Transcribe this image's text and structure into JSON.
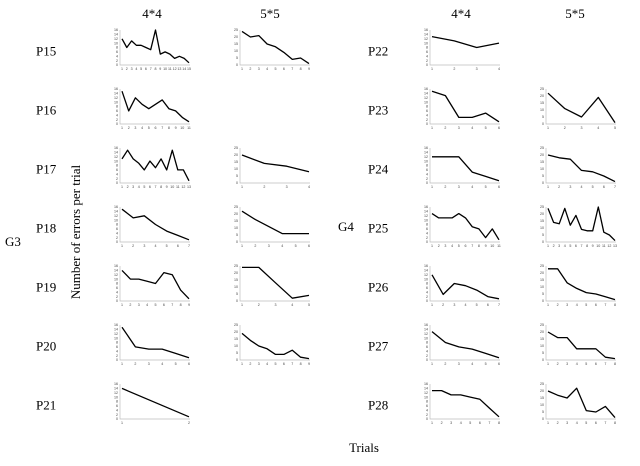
{
  "figure": {
    "ylabel": "Number of errors per trial",
    "xlabel": "Trials",
    "groups": [
      "G3",
      "G4"
    ],
    "columns": [
      "4*4",
      "5*5"
    ],
    "line_color": "#000000",
    "axis_color": "#bdbdbd"
  },
  "chart_data": [
    {
      "type": "line",
      "group": "G3",
      "participant": "P15",
      "board": "4*4",
      "x": [
        1,
        2,
        3,
        4,
        5,
        6,
        7,
        8,
        9,
        10,
        11,
        12,
        13,
        14,
        15
      ],
      "y": [
        12,
        8,
        11,
        9,
        9,
        8,
        7,
        16,
        5,
        6,
        5,
        3,
        4,
        3,
        1
      ],
      "ylim": [
        0,
        16
      ],
      "yticks": [
        0,
        2,
        4,
        6,
        8,
        10,
        12,
        14,
        16
      ],
      "xticks": [
        1,
        2,
        3,
        4,
        5,
        6,
        7,
        8,
        9,
        10,
        11,
        12,
        13,
        14,
        15
      ]
    },
    {
      "type": "line",
      "group": "G3",
      "participant": "P15",
      "board": "5*5",
      "x": [
        1,
        2,
        3,
        4,
        5,
        6,
        7,
        8,
        9
      ],
      "y": [
        24,
        20,
        21,
        15,
        13,
        9,
        4,
        5,
        1
      ],
      "ylim": [
        0,
        25
      ],
      "yticks": [
        0,
        5,
        10,
        15,
        20,
        25
      ],
      "xticks": [
        1,
        2,
        3,
        4,
        5,
        6,
        7,
        8,
        9
      ]
    },
    {
      "type": "line",
      "group": "G3",
      "participant": "P16",
      "board": "4*4",
      "x": [
        1,
        2,
        3,
        4,
        5,
        6,
        7,
        8,
        9,
        10,
        11
      ],
      "y": [
        15,
        6,
        12,
        9,
        7,
        9,
        11,
        7,
        6,
        3,
        1
      ],
      "ylim": [
        0,
        16
      ],
      "yticks": [
        0,
        2,
        4,
        6,
        8,
        10,
        12,
        14,
        16
      ],
      "xticks": [
        1,
        2,
        3,
        4,
        5,
        6,
        7,
        8,
        9,
        10,
        11
      ]
    },
    {
      "type": "line",
      "group": "G3",
      "participant": "P17",
      "board": "4*4",
      "x": [
        1,
        2,
        3,
        4,
        5,
        6,
        7,
        8,
        9,
        10,
        11,
        12,
        13
      ],
      "y": [
        11,
        15,
        11,
        9,
        6,
        10,
        7,
        11,
        6,
        15,
        6,
        6,
        1
      ],
      "ylim": [
        0,
        16
      ],
      "yticks": [
        0,
        2,
        4,
        6,
        8,
        10,
        12,
        14,
        16
      ],
      "xticks": [
        1,
        2,
        3,
        4,
        5,
        6,
        7,
        8,
        9,
        10,
        11,
        12,
        13
      ]
    },
    {
      "type": "line",
      "group": "G3",
      "participant": "P17",
      "board": "5*5",
      "x": [
        1,
        2,
        3,
        4
      ],
      "y": [
        20,
        14,
        12,
        8
      ],
      "ylim": [
        0,
        25
      ],
      "yticks": [
        0,
        5,
        10,
        15,
        20,
        25
      ],
      "xticks": [
        1,
        2,
        3,
        4
      ]
    },
    {
      "type": "line",
      "group": "G3",
      "participant": "P18",
      "board": "4*4",
      "x": [
        1,
        2,
        3,
        4,
        5,
        6,
        7
      ],
      "y": [
        15,
        11,
        12,
        8,
        5,
        3,
        1
      ],
      "ylim": [
        0,
        16
      ],
      "yticks": [
        0,
        2,
        4,
        6,
        8,
        10,
        12,
        14,
        16
      ],
      "xticks": [
        1,
        2,
        3,
        4,
        5,
        6,
        7
      ]
    },
    {
      "type": "line",
      "group": "G3",
      "participant": "P18",
      "board": "5*5",
      "x": [
        1,
        2,
        3,
        4,
        5,
        6
      ],
      "y": [
        22,
        16,
        11,
        6,
        6,
        6
      ],
      "ylim": [
        0,
        25
      ],
      "yticks": [
        0,
        5,
        10,
        15,
        20,
        25
      ],
      "xticks": [
        1,
        2,
        3,
        4,
        5,
        6
      ]
    },
    {
      "type": "line",
      "group": "G3",
      "participant": "P19",
      "board": "4*4",
      "x": [
        1,
        2,
        3,
        4,
        5,
        6,
        7,
        8,
        9
      ],
      "y": [
        14,
        10,
        10,
        9,
        8,
        13,
        12,
        5,
        1
      ],
      "ylim": [
        0,
        16
      ],
      "yticks": [
        0,
        2,
        4,
        6,
        8,
        10,
        12,
        14,
        16
      ],
      "xticks": [
        1,
        2,
        3,
        4,
        5,
        6,
        7,
        8,
        9
      ]
    },
    {
      "type": "line",
      "group": "G3",
      "participant": "P19",
      "board": "5*5",
      "x": [
        1,
        2,
        3,
        4,
        5
      ],
      "y": [
        24,
        24,
        13,
        2,
        4
      ],
      "ylim": [
        0,
        25
      ],
      "yticks": [
        0,
        5,
        10,
        15,
        20,
        25
      ],
      "xticks": [
        1,
        2,
        3,
        4,
        5
      ]
    },
    {
      "type": "line",
      "group": "G3",
      "participant": "P20",
      "board": "4*4",
      "x": [
        1,
        2,
        3,
        4,
        5,
        6
      ],
      "y": [
        15,
        6,
        5,
        5,
        3,
        1
      ],
      "ylim": [
        0,
        16
      ],
      "yticks": [
        0,
        2,
        4,
        6,
        8,
        10,
        12,
        14,
        16
      ],
      "xticks": [
        1,
        2,
        3,
        4,
        5,
        6
      ]
    },
    {
      "type": "line",
      "group": "G3",
      "participant": "P20",
      "board": "5*5",
      "x": [
        1,
        2,
        3,
        4,
        5,
        6,
        7,
        8,
        9
      ],
      "y": [
        19,
        14,
        10,
        8,
        4,
        4,
        7,
        2,
        1
      ],
      "ylim": [
        0,
        25
      ],
      "yticks": [
        0,
        5,
        10,
        15,
        20,
        25
      ],
      "xticks": [
        1,
        2,
        3,
        4,
        5,
        6,
        7,
        8,
        9
      ]
    },
    {
      "type": "line",
      "group": "G3",
      "participant": "P21",
      "board": "4*4",
      "x": [
        1,
        2
      ],
      "y": [
        14,
        1
      ],
      "ylim": [
        0,
        16
      ],
      "yticks": [
        0,
        2,
        4,
        6,
        8,
        10,
        12,
        14,
        16
      ],
      "xticks": [
        1,
        2
      ]
    },
    {
      "type": "line",
      "group": "G4",
      "participant": "P22",
      "board": "4*4",
      "x": [
        1,
        2,
        3,
        4
      ],
      "y": [
        13,
        11,
        8,
        10
      ],
      "ylim": [
        0,
        16
      ],
      "yticks": [
        0,
        2,
        4,
        6,
        8,
        10,
        12,
        14,
        16
      ],
      "xticks": [
        1,
        2,
        3,
        4
      ]
    },
    {
      "type": "line",
      "group": "G4",
      "participant": "P23",
      "board": "4*4",
      "x": [
        1,
        2,
        3,
        4,
        5,
        6
      ],
      "y": [
        15,
        13,
        3,
        3,
        5,
        1
      ],
      "ylim": [
        0,
        16
      ],
      "yticks": [
        0,
        2,
        4,
        6,
        8,
        10,
        12,
        14,
        16
      ],
      "xticks": [
        1,
        2,
        3,
        4,
        5,
        6
      ]
    },
    {
      "type": "line",
      "group": "G4",
      "participant": "P23",
      "board": "5*5",
      "x": [
        1,
        2,
        3,
        4,
        5
      ],
      "y": [
        22,
        11,
        5,
        19,
        1
      ],
      "ylim": [
        0,
        25
      ],
      "yticks": [
        0,
        5,
        10,
        15,
        20,
        25
      ],
      "xticks": [
        1,
        2,
        3,
        4,
        5
      ]
    },
    {
      "type": "line",
      "group": "G4",
      "participant": "P24",
      "board": "4*4",
      "x": [
        1,
        2,
        3,
        4,
        5,
        6
      ],
      "y": [
        12,
        12,
        12,
        5,
        3,
        1
      ],
      "ylim": [
        0,
        16
      ],
      "yticks": [
        0,
        2,
        4,
        6,
        8,
        10,
        12,
        14,
        16
      ],
      "xticks": [
        1,
        2,
        3,
        4,
        5,
        6
      ]
    },
    {
      "type": "line",
      "group": "G4",
      "participant": "P24",
      "board": "5*5",
      "x": [
        1,
        2,
        3,
        4,
        5,
        6,
        7
      ],
      "y": [
        20,
        18,
        17,
        9,
        8,
        5,
        1
      ],
      "ylim": [
        0,
        25
      ],
      "yticks": [
        0,
        5,
        10,
        15,
        20,
        25
      ],
      "xticks": [
        1,
        2,
        3,
        4,
        5,
        6,
        7
      ]
    },
    {
      "type": "line",
      "group": "G4",
      "participant": "P25",
      "board": "4*4",
      "x": [
        1,
        2,
        3,
        4,
        5,
        6,
        7,
        8,
        9,
        10,
        11
      ],
      "y": [
        13,
        11,
        11,
        11,
        13,
        11,
        7,
        6,
        2,
        6,
        1
      ],
      "ylim": [
        0,
        16
      ],
      "yticks": [
        0,
        2,
        4,
        6,
        8,
        10,
        12,
        14,
        16
      ],
      "xticks": [
        1,
        2,
        3,
        4,
        5,
        6,
        7,
        8,
        9,
        10,
        11
      ]
    },
    {
      "type": "line",
      "group": "G4",
      "participant": "P25",
      "board": "5*5",
      "x": [
        1,
        2,
        3,
        4,
        5,
        6,
        7,
        8,
        9,
        10,
        11,
        12,
        13
      ],
      "y": [
        24,
        14,
        13,
        24,
        12,
        19,
        9,
        8,
        8,
        25,
        7,
        5,
        1
      ],
      "ylim": [
        0,
        25
      ],
      "yticks": [
        0,
        5,
        10,
        15,
        20,
        25
      ],
      "xticks": [
        1,
        2,
        3,
        4,
        5,
        6,
        7,
        8,
        9,
        10,
        11,
        12,
        13
      ]
    },
    {
      "type": "line",
      "group": "G4",
      "participant": "P26",
      "board": "4*4",
      "x": [
        1,
        2,
        3,
        4,
        5,
        6,
        7
      ],
      "y": [
        12,
        3,
        8,
        7,
        5,
        2,
        1
      ],
      "ylim": [
        0,
        16
      ],
      "yticks": [
        0,
        2,
        4,
        6,
        8,
        10,
        12,
        14,
        16
      ],
      "xticks": [
        1,
        2,
        3,
        4,
        5,
        6,
        7
      ]
    },
    {
      "type": "line",
      "group": "G4",
      "participant": "P26",
      "board": "5*5",
      "x": [
        1,
        2,
        3,
        4,
        5,
        6,
        7,
        8
      ],
      "y": [
        23,
        23,
        13,
        9,
        6,
        5,
        3,
        1
      ],
      "ylim": [
        0,
        25
      ],
      "yticks": [
        0,
        5,
        10,
        15,
        20,
        25
      ],
      "xticks": [
        1,
        2,
        3,
        4,
        5,
        6,
        7,
        8
      ]
    },
    {
      "type": "line",
      "group": "G4",
      "participant": "P27",
      "board": "4*4",
      "x": [
        1,
        2,
        3,
        4,
        5,
        6
      ],
      "y": [
        13,
        8,
        6,
        5,
        3,
        1
      ],
      "ylim": [
        0,
        16
      ],
      "yticks": [
        0,
        2,
        4,
        6,
        8,
        10,
        12,
        14,
        16
      ],
      "xticks": [
        1,
        2,
        3,
        4,
        5,
        6
      ]
    },
    {
      "type": "line",
      "group": "G4",
      "participant": "P27",
      "board": "5*5",
      "x": [
        1,
        2,
        3,
        4,
        5,
        6,
        7,
        8
      ],
      "y": [
        20,
        16,
        16,
        8,
        8,
        8,
        2,
        1
      ],
      "ylim": [
        0,
        25
      ],
      "yticks": [
        0,
        5,
        10,
        15,
        20,
        25
      ],
      "xticks": [
        1,
        2,
        3,
        4,
        5,
        6,
        7,
        8
      ]
    },
    {
      "type": "line",
      "group": "G4",
      "participant": "P28",
      "board": "4*4",
      "x": [
        1,
        2,
        3,
        4,
        5,
        6,
        7,
        8
      ],
      "y": [
        13,
        13,
        11,
        11,
        10,
        9,
        5,
        1
      ],
      "ylim": [
        0,
        16
      ],
      "yticks": [
        0,
        2,
        4,
        6,
        8,
        10,
        12,
        14,
        16
      ],
      "xticks": [
        1,
        2,
        3,
        4,
        5,
        6,
        7,
        8
      ]
    },
    {
      "type": "line",
      "group": "G4",
      "participant": "P28",
      "board": "5*5",
      "x": [
        1,
        2,
        3,
        4,
        5,
        6,
        7,
        8
      ],
      "y": [
        20,
        17,
        15,
        22,
        6,
        5,
        9,
        1
      ],
      "ylim": [
        0,
        25
      ],
      "yticks": [
        0,
        5,
        10,
        15,
        20,
        25
      ],
      "xticks": [
        1,
        2,
        3,
        4,
        5,
        6,
        7,
        8
      ]
    }
  ]
}
